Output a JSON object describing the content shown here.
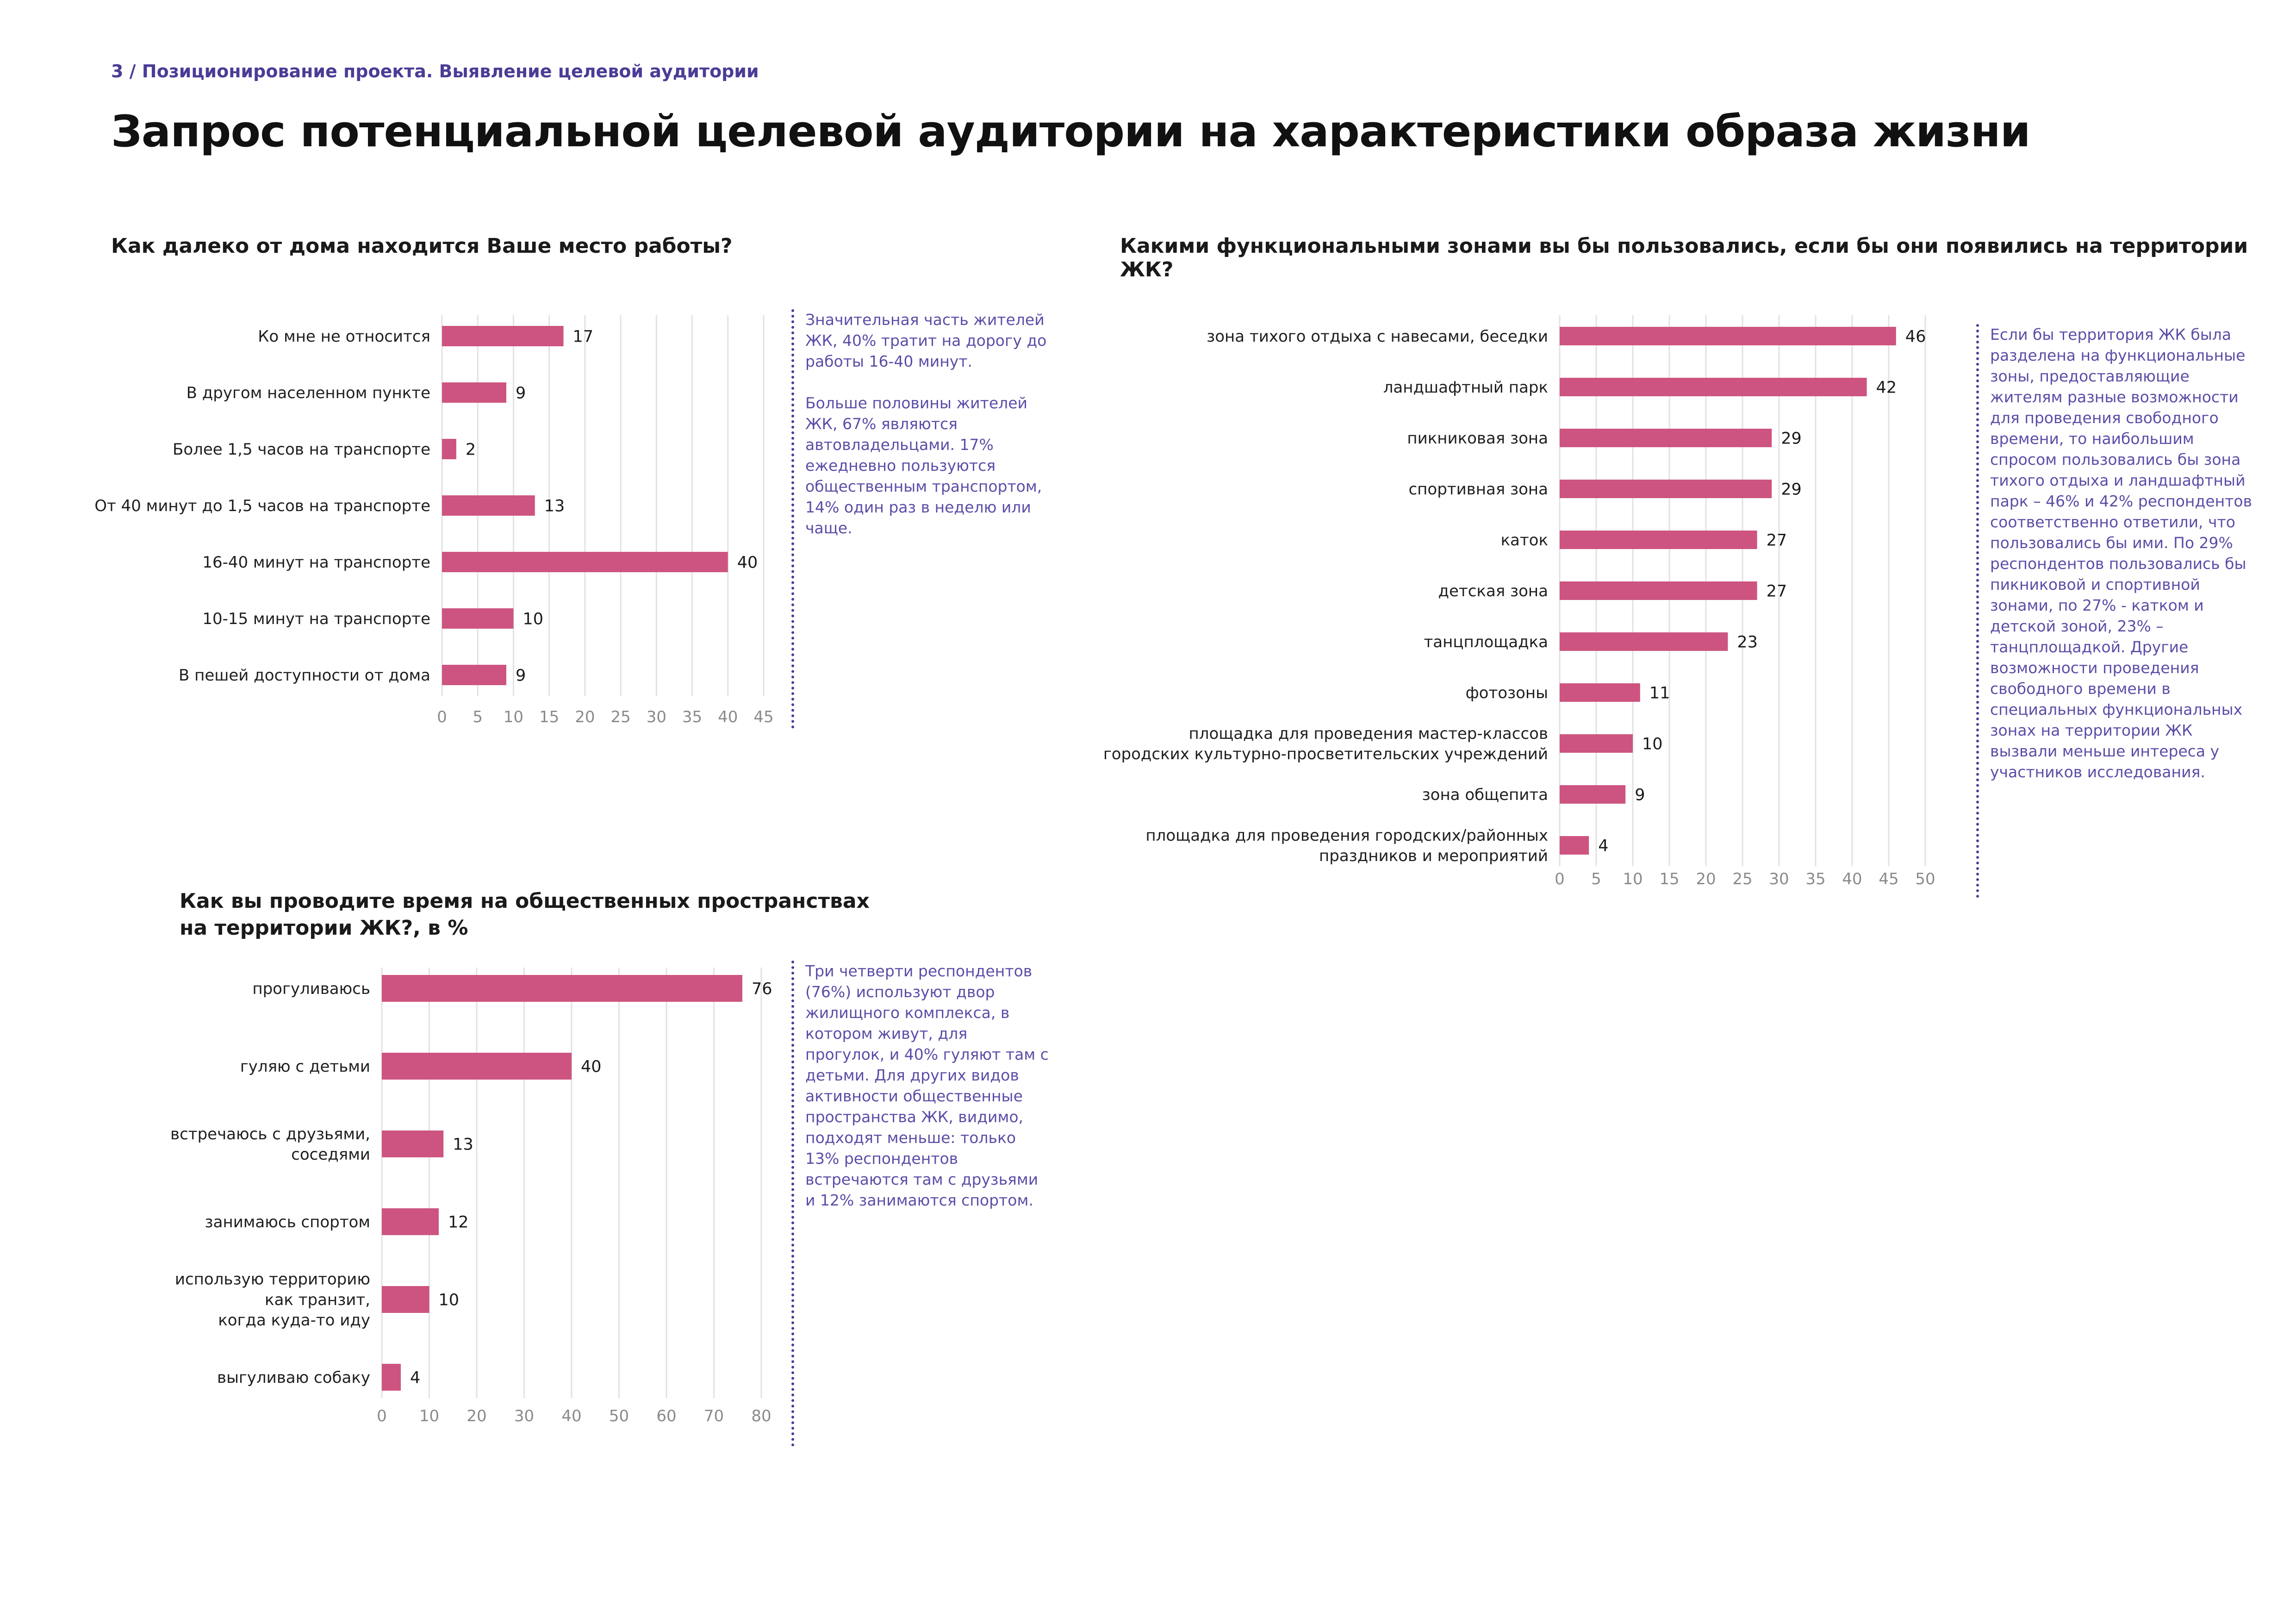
{
  "header": {
    "breadcrumb": "3 / Позиционирование проекта. Выявление целевой аудитории",
    "title": "Запрос потенциальной целевой аудитории на характеристики образа жизни"
  },
  "colors": {
    "bar": "#cd5480",
    "accent": "#4b3c96",
    "note_text": "#5a4ea7",
    "grid": "#e2e2e2"
  },
  "chart_data": [
    {
      "id": "work-distance",
      "type": "bar",
      "orientation": "horizontal",
      "title": "Как далеко от дома находится Ваше место работы?",
      "categories": [
        "Ко мне не относится",
        "В другом населенном пункте",
        "Более 1,5 часов на транспорте",
        "От 40 минут до 1,5 часов на транспорте",
        "16-40 минут на транспорте",
        "10-15 минут на транспорте",
        "В пешей доступности от дома"
      ],
      "values": [
        17,
        9,
        2,
        13,
        40,
        10,
        9
      ],
      "xlim": [
        0,
        45
      ],
      "ticks": [
        0,
        5,
        10,
        15,
        20,
        25,
        30,
        35,
        40,
        45
      ],
      "grid": true
    },
    {
      "id": "functional-zones",
      "type": "bar",
      "orientation": "horizontal",
      "title": "Какими функциональными зонами вы бы пользовались, если бы они появились на территории ЖК?",
      "categories": [
        "зона тихого отдыха с навесами, беседки",
        "ландшафтный парк",
        "пикниковая зона",
        "спортивная зона",
        "каток",
        "детская зона",
        "танцплощадка",
        "фотозоны",
        "площадка для проведения мастер-классов\nгородских культурно-просветительских учреждений",
        "зона общепита",
        "площадка для проведения городских/районных\nпраздников и мероприятий"
      ],
      "values": [
        46,
        42,
        29,
        29,
        27,
        27,
        23,
        11,
        10,
        9,
        4
      ],
      "xlim": [
        0,
        50
      ],
      "ticks": [
        0,
        5,
        10,
        15,
        20,
        25,
        30,
        35,
        40,
        45,
        50
      ],
      "grid": true
    },
    {
      "id": "public-spaces",
      "type": "bar",
      "orientation": "horizontal",
      "title": "Как вы проводите время на общественных пространствах на территории ЖК?, в %",
      "categories": [
        "прогуливаюсь",
        "гуляю с детьми",
        "встречаюсь с друзьями,\nсоседями",
        "занимаюсь спортом",
        "использую территорию\nкак транзит,\nкогда куда-то иду",
        "выгуливаю собаку"
      ],
      "values": [
        76,
        40,
        13,
        12,
        10,
        4
      ],
      "xlim": [
        0,
        80
      ],
      "ticks": [
        0,
        10,
        20,
        30,
        40,
        50,
        60,
        70,
        80
      ],
      "grid": true
    }
  ],
  "charts_meta": {
    "q1_title": "Как далеко от дома находится Ваше место работы?",
    "q2_title": "Какими функциональными зонами вы бы пользовались, если бы они появились на территории ЖК?",
    "q3_title_line1": "Как вы проводите время на общественных пространствах",
    "q3_title_line2": "на территории ЖК?, в %"
  },
  "notes": {
    "note1_p1": "Значительная часть жителей ЖК, 40% тратит на дорогу до работы 16-40 минут.",
    "note1_p2": "Больше половины жителей ЖК, 67% являются автовладельцами. 17% ежедневно пользуются общественным транспортом, 14% один раз в неделю или чаще.",
    "note2": "Если бы территория ЖК была разделена на функциональные зоны, предоставляющие жителям разные возможности для проведения свободного времени, то наибольшим спросом пользовались бы зона тихого отдыха и ландшафтный парк – 46% и 42% респондентов соответственно ответили, что пользовались бы ими. По 29% респондентов пользовались бы пикниковой и спортивной зонами, по 27% - катком и детской зоной, 23% – танцплощадкой. Другие возможности проведения свободного времени в специальных функциональных зонах на территории ЖК вызвали меньше интереса у участников исследования.",
    "note3": "Три четверти респондентов (76%) используют двор жилищного комплекса, в котором живут, для прогулок, и 40% гуляют там с детьми. Для других видов активности общественные пространства ЖК, видимо, подходят меньше: только 13% респондентов встречаются там с друзьями и 12% занимаются спортом."
  }
}
